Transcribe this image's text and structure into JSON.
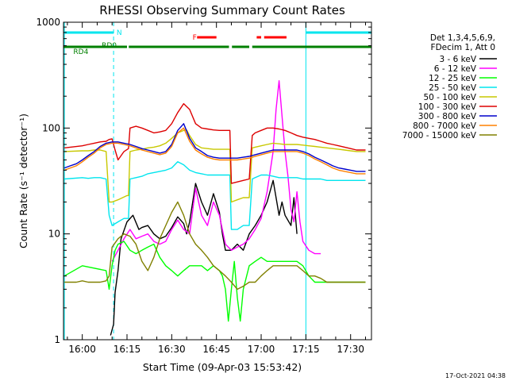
{
  "chart_data": {
    "type": "line",
    "title": "RHESSI Observing Summary Count Rates",
    "xlabel": "Start Time (09-Apr-03 15:53:42)",
    "ylabel": "Count Rate (s⁻¹ detector⁻¹)",
    "yscale": "log",
    "ylim": [
      1,
      1000
    ],
    "xlim": [
      -6.3,
      97
    ],
    "x_units": "minutes after 16:00 UT",
    "x_ticks": [
      {
        "value": 0,
        "label": "16:00"
      },
      {
        "value": 15,
        "label": "16:15"
      },
      {
        "value": 30,
        "label": "16:30"
      },
      {
        "value": 45,
        "label": "16:45"
      },
      {
        "value": 60,
        "label": "17:00"
      },
      {
        "value": 75,
        "label": "17:15"
      },
      {
        "value": 90,
        "label": "17:30"
      }
    ],
    "y_ticks": [
      {
        "value": 1,
        "label": "1"
      },
      {
        "value": 10,
        "label": "10"
      },
      {
        "value": 100,
        "label": "100"
      },
      {
        "value": 1000,
        "label": "1000"
      }
    ],
    "grid": false,
    "legend_position": "right",
    "legend_header": [
      "Det 1,3,4,5,6,9,",
      "FDecim 1, Att 0"
    ],
    "timestamp": "17-Oct-2021 04:38",
    "flags": [
      {
        "name": "N",
        "color": "#00e5ee",
        "label_x": 11.5,
        "segments": [
          [
            -6,
            10.5
          ],
          [
            75,
            97
          ]
        ]
      },
      {
        "name": "F",
        "color": "#ff0000",
        "label_x": 37,
        "segments": [
          [
            38.5,
            45
          ],
          [
            58.5,
            60
          ],
          [
            61,
            68.5
          ]
        ]
      },
      {
        "name": "RD0",
        "color": "#008000",
        "label_x": 6.5,
        "segments": [
          [
            -6.2,
            10.5
          ]
        ]
      },
      {
        "name": "RD4",
        "color": "#008000",
        "label_x": -3,
        "segments": [
          [
            -6.2,
            -5
          ],
          [
            1,
            15
          ],
          [
            15.6,
            49.2
          ],
          [
            50.2,
            56
          ],
          [
            57,
            97
          ]
        ]
      }
    ],
    "vlines": [
      {
        "x": -6,
        "style": "solid",
        "color": "#00e5ee"
      },
      {
        "x": 10.5,
        "style": "dashed",
        "color": "#00e5ee"
      },
      {
        "x": 75,
        "style": "solid",
        "color": "#00e5ee"
      },
      {
        "x": 97,
        "style": "dashed",
        "color": "#00e5ee"
      }
    ],
    "series": [
      {
        "name": "3 - 6 keV",
        "color": "#000000",
        "x": [
          -6,
          8,
          9.5,
          10.5,
          11,
          12,
          13,
          15,
          17,
          19,
          20,
          22,
          24,
          26,
          28,
          30,
          32,
          34,
          35,
          36,
          38,
          40,
          42,
          44,
          46,
          47,
          48,
          50,
          52,
          54,
          56,
          58,
          60,
          62,
          64,
          66,
          67,
          68,
          70,
          71,
          72
        ],
        "y": [
          null,
          null,
          1.1,
          1.4,
          2.8,
          4.5,
          9,
          13,
          15,
          11,
          11.5,
          12,
          10,
          9,
          9.5,
          11.5,
          14.5,
          12.5,
          10,
          13,
          30,
          20,
          15,
          24,
          16,
          10,
          7,
          7,
          8,
          7,
          10,
          12,
          15,
          20,
          32,
          15,
          20,
          15,
          12,
          22,
          10
        ]
      },
      {
        "name": "6 - 12 keV",
        "color": "#ff00ff",
        "x": [
          10,
          12,
          14,
          16,
          18,
          20,
          22,
          24,
          26,
          28,
          30,
          32,
          34,
          36,
          38,
          40,
          42,
          44,
          46,
          48,
          50,
          52,
          54,
          56,
          58,
          60,
          62,
          64,
          65,
          66,
          67,
          68,
          69,
          70,
          71,
          72,
          73,
          74,
          76,
          78,
          80
        ],
        "y": [
          5.5,
          7,
          9,
          11,
          9,
          9.5,
          10,
          8.5,
          8,
          8.5,
          11,
          13.5,
          11,
          10,
          27,
          15,
          12,
          20,
          15,
          8,
          7,
          7.5,
          8,
          9,
          11,
          14,
          25,
          60,
          150,
          280,
          130,
          60,
          35,
          17,
          13,
          25,
          13,
          8.5,
          7,
          6.5,
          6.5
        ]
      },
      {
        "name": "12 - 25 keV",
        "color": "#00ff00",
        "x": [
          -6,
          0,
          8,
          9,
          10,
          11,
          12,
          14,
          16,
          18,
          20,
          22,
          24,
          26,
          28,
          30,
          32,
          34,
          36,
          38,
          40,
          42,
          44,
          46,
          47,
          48,
          49,
          50,
          51,
          52,
          53,
          54,
          56,
          58,
          60,
          62,
          64,
          66,
          68,
          70,
          72,
          74,
          76,
          78,
          80,
          82,
          84,
          86,
          88,
          90,
          92,
          95
        ],
        "y": [
          4,
          5,
          4.5,
          3,
          5,
          7,
          8,
          8.5,
          7,
          6.5,
          7,
          7.5,
          8,
          6,
          5,
          4.5,
          4,
          4.5,
          5,
          5,
          5,
          4.5,
          5,
          4.5,
          4,
          3,
          1.5,
          3,
          5.5,
          2.5,
          1.5,
          3,
          5,
          5.5,
          6,
          5.5,
          5.5,
          5.5,
          5.5,
          5.5,
          5.5,
          5,
          4,
          3.5,
          3.5,
          3.5,
          3.5,
          3.5,
          3.5,
          3.5,
          3.5,
          3.5
        ]
      },
      {
        "name": "25 - 50 keV",
        "color": "#00e5ee",
        "x": [
          -6,
          0,
          2,
          4,
          6,
          8,
          9,
          10,
          12,
          14,
          15.5,
          16,
          18,
          20,
          22,
          24,
          26,
          28,
          30,
          32,
          34,
          36,
          38,
          40,
          42,
          44,
          46,
          48,
          49.5,
          50,
          52,
          54,
          56,
          57,
          58,
          60,
          62,
          64,
          66,
          68,
          70,
          72,
          74,
          76,
          78,
          80,
          82,
          84,
          86,
          88,
          90,
          92,
          95
        ],
        "y": [
          33,
          34,
          33.5,
          34,
          34,
          33,
          15,
          12,
          13,
          14,
          14,
          33,
          34,
          35,
          37,
          38,
          39,
          40,
          42,
          48,
          45,
          40,
          38,
          37,
          36,
          36,
          36,
          36,
          36,
          11,
          11,
          12,
          12,
          33,
          34,
          36,
          36,
          35,
          34,
          34,
          34,
          34,
          33,
          33,
          33,
          33,
          32,
          32,
          32,
          32,
          32,
          32,
          32
        ]
      },
      {
        "name": "50 - 100 keV",
        "color": "#c8c800",
        "x": [
          -6,
          0,
          2,
          4,
          6,
          8,
          9,
          10,
          12,
          15,
          15.5,
          16,
          18,
          20,
          22,
          24,
          26,
          28,
          30,
          32,
          34,
          35,
          36,
          38,
          40,
          42,
          44,
          46,
          48,
          49.5,
          50,
          52,
          54,
          56,
          57,
          58,
          60,
          62,
          64,
          66,
          68,
          70,
          72,
          74,
          76,
          78,
          80,
          82,
          84,
          86,
          88,
          90,
          92,
          95
        ],
        "y": [
          60,
          61,
          61,
          62,
          62,
          60,
          20,
          20,
          21,
          23,
          23,
          60,
          62,
          63,
          65,
          66,
          68,
          72,
          80,
          90,
          95,
          96,
          85,
          70,
          65,
          64,
          63,
          63,
          63,
          63,
          20,
          21,
          22,
          22,
          65,
          66,
          68,
          70,
          72,
          71,
          70,
          70,
          70,
          69,
          68,
          67,
          66,
          65,
          64,
          63,
          62,
          61,
          60,
          60
        ]
      },
      {
        "name": "100 - 300 keV",
        "color": "#dd0000",
        "x": [
          -6,
          0,
          2,
          4,
          6,
          8,
          9,
          10,
          11,
          12,
          14,
          15.5,
          16,
          18,
          20,
          22,
          24,
          26,
          28,
          30,
          32,
          34,
          36,
          38,
          40,
          42,
          44,
          46,
          48,
          49.5,
          50,
          52,
          54,
          56,
          57,
          58,
          60,
          62,
          64,
          66,
          68,
          70,
          72,
          74,
          76,
          78,
          80,
          82,
          84,
          86,
          88,
          90,
          92,
          95
        ],
        "y": [
          65,
          68,
          70,
          72,
          74,
          75,
          78,
          79,
          62,
          50,
          60,
          64,
          100,
          104,
          100,
          95,
          90,
          92,
          95,
          110,
          140,
          170,
          150,
          110,
          100,
          98,
          96,
          95,
          95,
          95,
          30,
          31,
          32,
          33,
          85,
          90,
          95,
          100,
          100,
          98,
          95,
          90,
          85,
          82,
          80,
          78,
          75,
          72,
          70,
          68,
          66,
          64,
          62,
          62
        ]
      },
      {
        "name": "300 - 800 keV",
        "color": "#0000cc",
        "x": [
          -6,
          -4,
          -2,
          0,
          2,
          4,
          6,
          8,
          10,
          12,
          14,
          16,
          18,
          20,
          22,
          24,
          26,
          28,
          30,
          32,
          34,
          36,
          38,
          40,
          42,
          44,
          46,
          48,
          50,
          52,
          54,
          56,
          58,
          60,
          62,
          64,
          66,
          68,
          70,
          72,
          74,
          76,
          78,
          80,
          82,
          84,
          86,
          88,
          90,
          92,
          95
        ],
        "y": [
          42,
          44,
          46,
          50,
          55,
          60,
          67,
          72,
          74,
          74,
          72,
          70,
          67,
          64,
          62,
          60,
          58,
          60,
          70,
          95,
          110,
          80,
          65,
          60,
          55,
          53,
          52,
          52,
          52,
          52,
          53,
          54,
          56,
          58,
          60,
          62,
          62,
          62,
          62,
          62,
          60,
          57,
          53,
          50,
          47,
          44,
          42,
          41,
          40,
          39,
          39
        ]
      },
      {
        "name": "800 - 7000 keV",
        "color": "#ff8000",
        "x": [
          -6,
          -4,
          -2,
          0,
          2,
          4,
          6,
          8,
          10,
          12,
          14,
          16,
          18,
          20,
          22,
          24,
          26,
          28,
          30,
          32,
          34,
          36,
          38,
          40,
          42,
          44,
          46,
          48,
          50,
          52,
          54,
          56,
          58,
          60,
          62,
          64,
          66,
          68,
          70,
          72,
          74,
          76,
          78,
          80,
          82,
          84,
          86,
          88,
          90,
          92,
          95
        ],
        "y": [
          40,
          42,
          44,
          48,
          53,
          58,
          65,
          70,
          72,
          72,
          70,
          68,
          65,
          62,
          60,
          58,
          56,
          58,
          67,
          90,
          100,
          75,
          62,
          57,
          53,
          51,
          50,
          50,
          50,
          50,
          51,
          52,
          54,
          56,
          58,
          60,
          60,
          60,
          60,
          60,
          58,
          55,
          51,
          48,
          45,
          42,
          40,
          39,
          38,
          37,
          37
        ]
      },
      {
        "name": "7000 - 15000 keV",
        "color": "#808000",
        "x": [
          -6,
          -2,
          0,
          2,
          4,
          6,
          8,
          9,
          10,
          12,
          14,
          16,
          18,
          20,
          22,
          24,
          26,
          28,
          30,
          32,
          34,
          36,
          38,
          40,
          42,
          44,
          46,
          48,
          50,
          52,
          54,
          56,
          58,
          60,
          62,
          64,
          66,
          68,
          70,
          72,
          74,
          76,
          78,
          80,
          82,
          84,
          86,
          88,
          90,
          92,
          95
        ],
        "y": [
          3.5,
          3.5,
          3.6,
          3.5,
          3.5,
          3.5,
          3.6,
          4,
          7.5,
          9,
          10,
          9.5,
          8,
          5.5,
          4.5,
          6,
          9,
          12,
          16,
          20,
          15,
          10,
          8,
          7,
          6,
          5,
          4.5,
          4,
          3.5,
          3,
          3.2,
          3.5,
          3.5,
          4,
          4.5,
          5,
          5,
          5,
          5,
          5,
          4.5,
          4,
          4,
          3.8,
          3.5,
          3.5,
          3.5,
          3.5,
          3.5,
          3.5,
          3.5
        ]
      }
    ]
  }
}
